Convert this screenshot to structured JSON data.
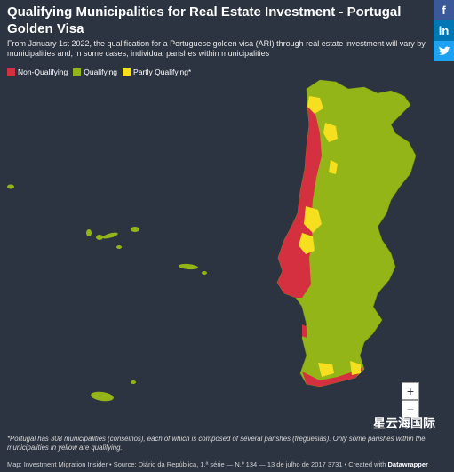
{
  "header": {
    "title": "Qualifying Municipalities for Real Estate Investment - Portugal Golden Visa",
    "subtitle": "From January 1st 2022, the qualification for a Portuguese golden visa (ARI) through real estate investment will vary by municipalities and, in some cases, individual parishes within municipalities"
  },
  "legend": [
    {
      "name": "Non-Qualifying",
      "color": "#d5303f"
    },
    {
      "name": "Qualifying",
      "color": "#94b517"
    },
    {
      "name": "Partly Qualifying*",
      "color": "#f5df1f"
    }
  ],
  "footnote": "*Portugal has 308 municipalities (conselhos), each of which is composed of several parishes (freguesias). Only some parishes within the municipalities in yellow are qualifying.",
  "source": {
    "text": "Map: Investment Migration Insider • Source: Diário da República, 1.ª série — N.º 134 — 13 de julho de 2017 3731 • Created with ",
    "brand": "Datawrapper"
  },
  "social": {
    "facebook": "f",
    "linkedin": "in"
  },
  "zoom": {
    "in": "+",
    "out": "−"
  },
  "watermark": "星云海国际"
}
